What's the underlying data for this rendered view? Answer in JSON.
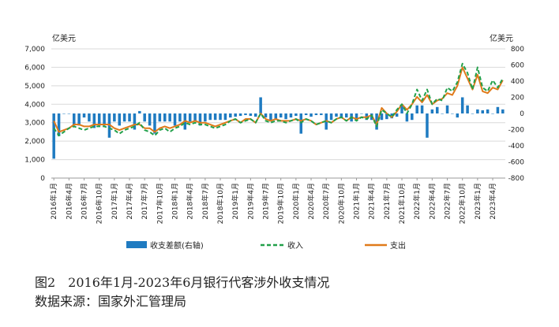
{
  "caption": {
    "figure": "图2　2016年1月-2023年6月银行代客涉外收支情况",
    "source": "数据来源：国家外汇管理局"
  },
  "chart_data": {
    "type": "bar+line",
    "left_axis": {
      "unit": "亿美元",
      "min": 0,
      "max": 7000,
      "step": 1000,
      "ticks": [
        "0",
        "1,000",
        "2,000",
        "3,000",
        "4,000",
        "5,000",
        "6,000",
        "7,000"
      ]
    },
    "right_axis": {
      "unit": "亿美元",
      "min": -800,
      "max": 800,
      "step": 200,
      "ticks": [
        "-800",
        "-600",
        "-400",
        "-200",
        "0",
        "200",
        "400",
        "600",
        "800"
      ]
    },
    "x_tick_labels": [
      "2016年1月",
      "2016年4月",
      "2016年7月",
      "2016年10月",
      "2017年1月",
      "2017年4月",
      "2017年7月",
      "2017年10月",
      "2018年1月",
      "2018年4月",
      "2018年7月",
      "2018年10月",
      "2019年1月",
      "2019年4月",
      "2019年7月",
      "2019年10月",
      "2020年1月",
      "2020年4月",
      "2020年7月",
      "2020年10月",
      "2021年1月",
      "2021年4月",
      "2021年7月",
      "2021年10月",
      "2022年1月",
      "2022年4月",
      "2022年7月",
      "2022年10月",
      "2023年1月",
      "2023年4月"
    ],
    "months": 90,
    "legend": [
      "收支差额(右轴)",
      "收入",
      "支出"
    ],
    "legend_position": "bottom",
    "colors": {
      "balance": "#1f7bc1",
      "income": "#22a04a",
      "expense": "#e07a1a"
    },
    "series": [
      {
        "name": "收支差额(右轴)",
        "type": "bar",
        "axis": "right",
        "values": [
          -560,
          -280,
          0,
          0,
          -150,
          -150,
          -50,
          -100,
          -180,
          -150,
          -150,
          -300,
          -100,
          -150,
          -100,
          -100,
          -200,
          30,
          -100,
          -150,
          -250,
          -100,
          -100,
          -100,
          -150,
          -100,
          -200,
          -100,
          -100,
          -150,
          -100,
          -80,
          -80,
          -80,
          -80,
          -50,
          -40,
          -30,
          -20,
          -30,
          -40,
          200,
          -50,
          -100,
          -80,
          -50,
          -70,
          -50,
          -30,
          -250,
          -20,
          -40,
          -20,
          -20,
          -200,
          -80,
          -40,
          -60,
          -50,
          -100,
          -80,
          0,
          -80,
          -80,
          -200,
          -80,
          -70,
          -60,
          -40,
          100,
          -100,
          -80,
          100,
          100,
          -300,
          50,
          80,
          0,
          100,
          0,
          -50,
          200,
          100,
          0,
          50,
          40,
          50,
          0,
          80,
          50
        ]
      },
      {
        "name": "收入",
        "type": "line",
        "axis": "left",
        "style": "dashed",
        "values": [
          2700,
          2300,
          2500,
          2700,
          2800,
          2700,
          2600,
          2700,
          2800,
          2800,
          2800,
          2700,
          2600,
          2400,
          2600,
          2700,
          2800,
          3000,
          2600,
          2500,
          2300,
          2600,
          2700,
          2500,
          2700,
          2800,
          3000,
          2900,
          3000,
          2900,
          2900,
          2800,
          2700,
          2800,
          2900,
          3100,
          3200,
          3000,
          3100,
          3200,
          3000,
          3500,
          3100,
          3000,
          3100,
          3100,
          3000,
          3100,
          3200,
          3000,
          3200,
          3100,
          2900,
          3000,
          3100,
          3000,
          3200,
          3300,
          3100,
          3300,
          3100,
          3300,
          3200,
          3400,
          2800,
          3700,
          3500,
          3300,
          3700,
          4000,
          3500,
          4000,
          4800,
          4200,
          4800,
          4000,
          4300,
          4200,
          4900,
          4700,
          5200,
          6200,
          5700,
          4800,
          6000,
          4900,
          4700,
          5300,
          4900,
          5400
        ]
      },
      {
        "name": "支出",
        "type": "line",
        "axis": "left",
        "style": "solid",
        "values": [
          3100,
          2500,
          2600,
          2700,
          2900,
          2900,
          2800,
          2800,
          2900,
          2900,
          2900,
          2900,
          2700,
          2600,
          2700,
          2800,
          2900,
          2900,
          2700,
          2700,
          2500,
          2700,
          2800,
          2700,
          2800,
          2900,
          3100,
          3000,
          3100,
          3000,
          3000,
          2900,
          2800,
          2900,
          3000,
          3100,
          3200,
          3000,
          3200,
          3200,
          3000,
          3500,
          3200,
          3100,
          3200,
          3100,
          3100,
          3100,
          3200,
          3100,
          3200,
          3100,
          2900,
          3000,
          3100,
          3000,
          3200,
          3300,
          3100,
          3300,
          3200,
          3300,
          3300,
          3400,
          2900,
          3800,
          3500,
          3300,
          3600,
          4000,
          3700,
          4000,
          4400,
          4100,
          4500,
          4000,
          4200,
          4300,
          4600,
          4500,
          5000,
          6000,
          5400,
          4800,
          5600,
          4700,
          4600,
          4900,
          4800,
          5300
        ]
      }
    ]
  }
}
